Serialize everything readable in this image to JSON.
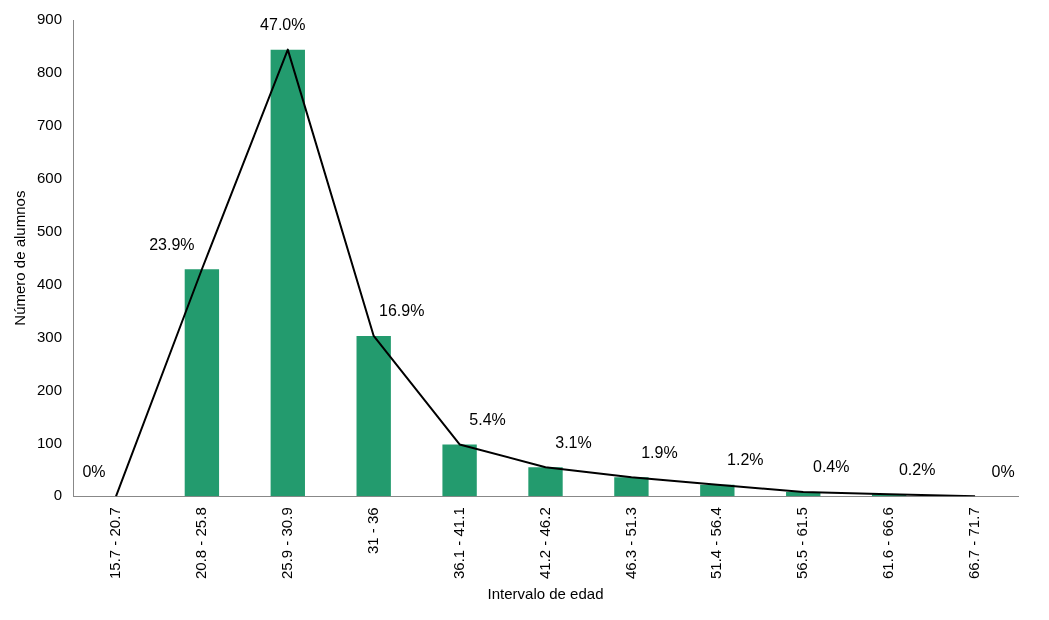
{
  "chart_data": {
    "type": "bar",
    "xlabel": "Intervalo de edad",
    "ylabel": "Número de alumnos",
    "categories": [
      "15.7 - 20.7",
      "20.8 - 25.8",
      "25.9 - 30.9",
      "31 - 36",
      "36.1 - 41.1",
      "41.2 - 46.2",
      "46.3 - 51.3",
      "51.4 - 56.4",
      "56.5 - 61.5",
      "61.6 - 66.6",
      "66.7 - 71.7"
    ],
    "series": [
      {
        "color": "#239b6e",
        "values": [
          0,
          429,
          844,
          303,
          98,
          55,
          36,
          22,
          8,
          4,
          0
        ]
      },
      {
        "type": "line",
        "color": "#000000",
        "values": [
          0,
          429,
          844,
          303,
          98,
          55,
          36,
          22,
          8,
          4,
          0
        ]
      }
    ],
    "annotations": [
      {
        "text": "0%",
        "x": "15.7 - 20.7",
        "y": 0
      },
      {
        "text": "23.9%",
        "x": "20.8 - 25.8",
        "y": 429
      },
      {
        "text": "47.0%",
        "x": "25.9 - 30.9",
        "y": 844
      },
      {
        "text": "16.9%",
        "x": "31 - 36",
        "y": 303
      },
      {
        "text": "5.4%",
        "x": "36.1 - 41.1",
        "y": 98
      },
      {
        "text": "3.1%",
        "x": "41.2 - 46.2",
        "y": 55
      },
      {
        "text": "1.9%",
        "x": "46.3 - 51.3",
        "y": 36
      },
      {
        "text": "1.2%",
        "x": "51.4 - 56.4",
        "y": 22
      },
      {
        "text": "0.4%",
        "x": "56.5 - 61.5",
        "y": 8
      },
      {
        "text": "0.2%",
        "x": "61.6 - 66.6",
        "y": 4
      },
      {
        "text": "0%",
        "x": "66.7 - 71.7",
        "y": 0
      }
    ],
    "ylim": [
      0,
      900
    ],
    "yticks": [
      0,
      100,
      200,
      300,
      400,
      500,
      600,
      700,
      800,
      900
    ],
    "grid": false,
    "legend": false,
    "marker": "none"
  }
}
